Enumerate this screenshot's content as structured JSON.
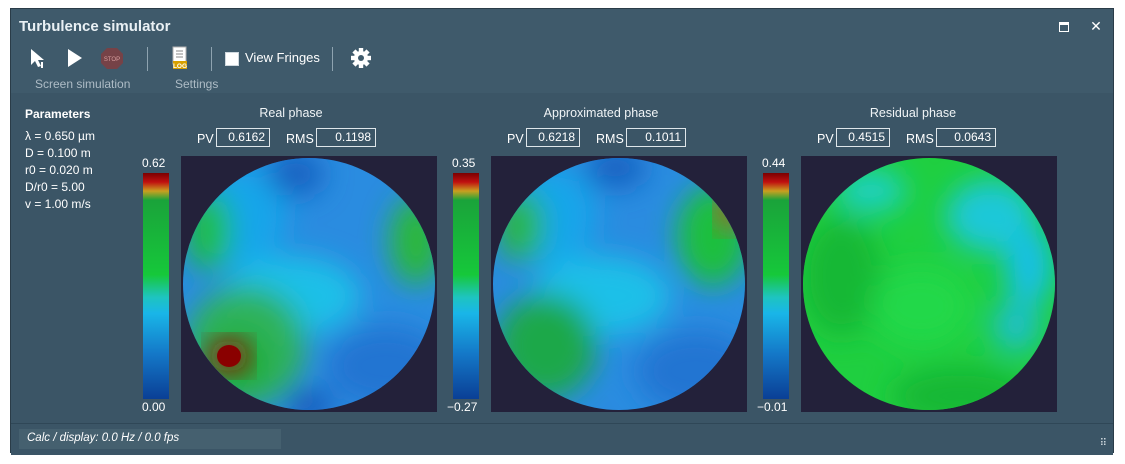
{
  "window": {
    "title": "Turbulence simulator",
    "maximize_icon": "maximize-icon",
    "close_label": "✕"
  },
  "toolbar": {
    "groups": [
      "Screen simulation",
      "Settings"
    ],
    "view_fringes_label": "View Fringes",
    "view_fringes_checked": false,
    "stop_label": "STOP",
    "log_label": "LOG"
  },
  "parameters": {
    "title": "Parameters",
    "items": [
      "λ = 0.650  µm",
      "D = 0.100  m",
      "r0 = 0.020  m",
      "D/r0 = 5.00",
      "v = 1.00  m/s"
    ]
  },
  "panels": [
    {
      "title": "Real phase",
      "pv_label": "PV",
      "pv": "0.6162",
      "rms_label": "RMS",
      "rms": "0.1198",
      "cbar_max": "0.62",
      "cbar_min": "0.00"
    },
    {
      "title": "Approximated phase",
      "pv_label": "PV",
      "pv": "0.6218",
      "rms_label": "RMS",
      "rms": "0.1011",
      "cbar_max": "0.35",
      "cbar_min": "−0.27"
    },
    {
      "title": "Residual phase",
      "pv_label": "PV",
      "pv": "0.4515",
      "rms_label": "RMS",
      "rms": "0.0643",
      "cbar_max": "0.44",
      "cbar_min": "−0.01"
    }
  ],
  "status": {
    "text": "Calc / display:  0.0  Hz /  0.0  fps"
  },
  "colors": {
    "window_bg": "#3f5a6b",
    "plot_bg": "#23213a",
    "accent_blue": "#2e8ad6",
    "accent_green": "#1fbf3c"
  }
}
